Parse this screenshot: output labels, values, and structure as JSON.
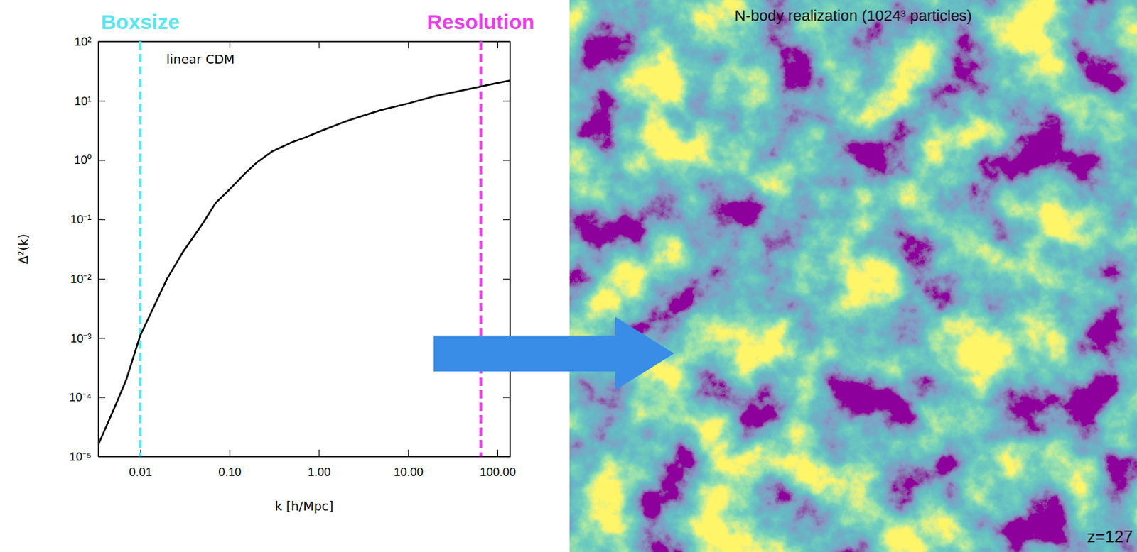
{
  "chart_data": {
    "type": "line",
    "log": true,
    "grid": false,
    "x_label": "k [h/Mpc]",
    "y_label": "Δ²(k)",
    "x": [
      0.0034,
      0.005,
      0.007,
      0.01,
      0.015,
      0.02,
      0.03,
      0.05,
      0.07,
      0.1,
      0.15,
      0.2,
      0.3,
      0.5,
      0.7,
      1,
      2,
      3,
      5,
      10,
      20,
      50,
      100,
      138
    ],
    "series": [
      {
        "name": "linear CDM",
        "color": "#000000",
        "values": [
          1.6e-05,
          6e-05,
          0.0002,
          0.0011,
          0.004,
          0.01,
          0.028,
          0.085,
          0.19,
          0.32,
          0.6,
          0.9,
          1.4,
          2.0,
          2.4,
          3.0,
          4.5,
          5.5,
          7.0,
          9.0,
          12,
          16,
          20,
          22
        ]
      }
    ],
    "xlim": [
      0.0034,
      138
    ],
    "ylim": [
      1e-05,
      100
    ],
    "xticks": [
      0.01,
      {
        "value": 0.1,
        "label": "0.10"
      },
      {
        "value": 1,
        "label": "1.00"
      },
      {
        "value": 10,
        "label": "10.00"
      },
      {
        "value": 100,
        "label": "100.00"
      }
    ],
    "yticks": [
      {
        "value": 1e-05,
        "label": "10⁻⁵"
      },
      {
        "value": 0.0001,
        "label": "10⁻⁴"
      },
      {
        "value": 0.001,
        "label": "10⁻³"
      },
      {
        "value": 0.01,
        "label": "10⁻²"
      },
      {
        "value": 0.1,
        "label": "10⁻¹"
      },
      {
        "value": 1,
        "label": "10⁰"
      },
      {
        "value": 10,
        "label": "10¹"
      },
      {
        "value": 100,
        "label": "10²"
      }
    ],
    "vlines": [
      {
        "name": "Boxsize",
        "x": 0.01,
        "color": "#5ce5ee"
      },
      {
        "name": "Resolution",
        "x": 65,
        "color": "#e83fe6"
      }
    ]
  },
  "panel": {
    "title": "N-body realization (1024³ particles)",
    "label": "z=127"
  }
}
